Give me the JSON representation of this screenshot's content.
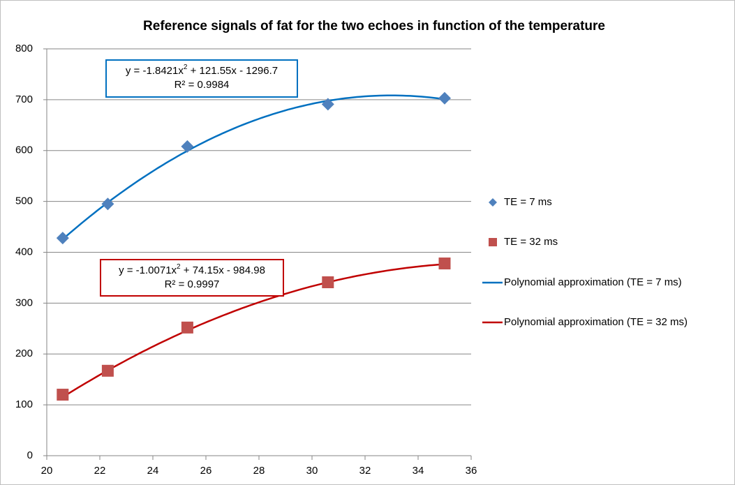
{
  "chart_data": {
    "type": "scatter",
    "title": "Reference signals of fat for the two echoes in function of the temperature",
    "xlim": [
      20,
      36
    ],
    "xticks": [
      20,
      22,
      24,
      26,
      28,
      30,
      32,
      34,
      36
    ],
    "ylim": [
      0,
      800
    ],
    "yticks": [
      0,
      100,
      200,
      300,
      400,
      500,
      600,
      700,
      800
    ],
    "grid": true,
    "legend": "right",
    "series": [
      {
        "name": "TE = 7 ms",
        "color": "#4f81bd",
        "marker": "diamond",
        "x": [
          20.6,
          22.3,
          25.3,
          30.6,
          35.0
        ],
        "values": [
          428,
          495,
          608,
          691,
          703
        ]
      },
      {
        "name": "TE = 32 ms",
        "color": "#c0504d",
        "marker": "square",
        "x": [
          20.6,
          22.3,
          25.3,
          30.6,
          35.0
        ],
        "values": [
          120,
          167,
          252,
          341,
          378
        ]
      }
    ],
    "trendlines": [
      {
        "name": "Polynomial approximation (TE = 7 ms)",
        "color": "#0070c0",
        "of_series": 0,
        "coefficients": [
          -1.8421,
          121.55,
          -1296.7
        ],
        "equation": {
          "before": "y = -1.8421x",
          "power": "2",
          "after": " + 121.55x - 1296.7"
        },
        "r2_label": "R² = 0.9984"
      },
      {
        "name": "Polynomial approximation (TE = 32 ms)",
        "color": "#c00000",
        "of_series": 1,
        "coefficients": [
          -1.0071,
          74.15,
          -984.98
        ],
        "equation": {
          "before": "y = -1.0071x",
          "power": "2",
          "after": " + 74.15x - 984.98"
        },
        "r2_label": "R² = 0.9997"
      }
    ]
  }
}
